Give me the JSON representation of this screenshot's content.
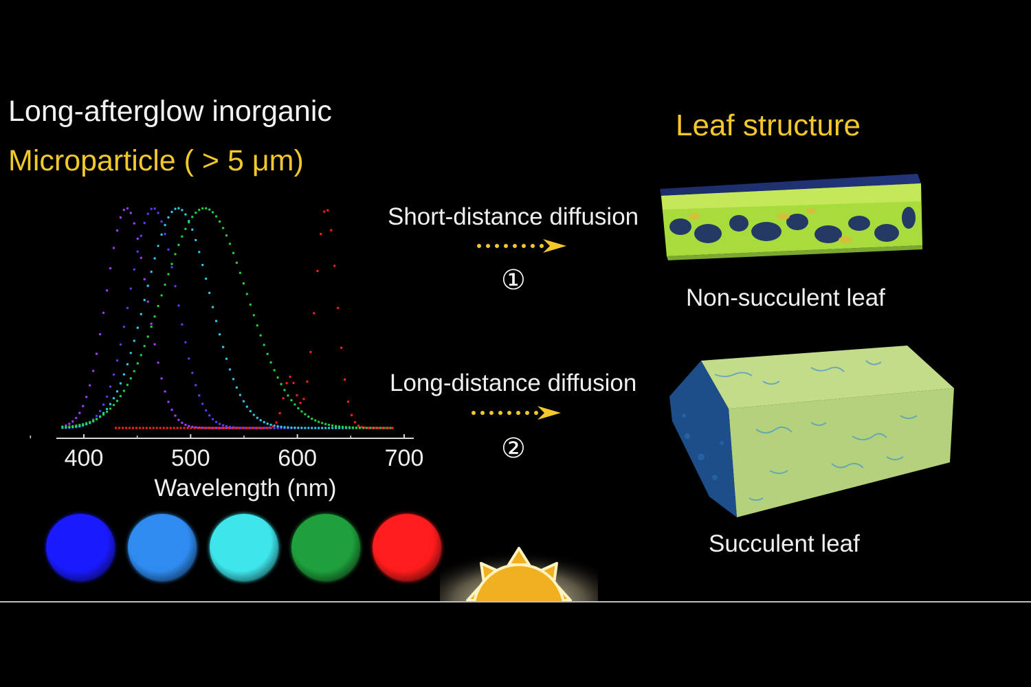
{
  "title": {
    "line1": "Long-afterglow inorganic",
    "line2": "Microparticle ( > 5 μm)"
  },
  "leaf_title": "Leaf structure",
  "pathways": [
    {
      "label": "Short-distance diffusion",
      "step": "①",
      "leaf": "Non-succulent leaf"
    },
    {
      "label": "Long-distance diffusion",
      "step": "②",
      "leaf": "Succulent leaf"
    }
  ],
  "colors": {
    "accent_yellow": "#f2c82b",
    "swatches": [
      "#1a1aff",
      "#2f8bf0",
      "#3ee6ec",
      "#1fa03c",
      "#ff1c1c"
    ]
  },
  "chart_data": {
    "type": "line",
    "xlabel": "Wavelength (nm)",
    "ylabel": "",
    "xlim": [
      350,
      700
    ],
    "ylim": [
      0,
      1
    ],
    "x_ticks": [
      400,
      500,
      600,
      700
    ],
    "series": [
      {
        "color": "#9b40ff",
        "center": 440,
        "width": 19,
        "x_range": [
          380,
          600
        ]
      },
      {
        "color": "#5a3cff",
        "center": 465,
        "width": 22,
        "x_range": [
          380,
          610
        ]
      },
      {
        "color": "#30c8e8",
        "center": 488,
        "width": 30,
        "x_range": [
          380,
          680
        ]
      },
      {
        "color": "#20d040",
        "center": 513,
        "width": 40,
        "x_range": [
          380,
          690
        ]
      },
      {
        "color": "#ff2020",
        "center": 627,
        "width": 10,
        "x_range": [
          430,
          690
        ],
        "secondary_peak": {
          "center": 593,
          "width": 6,
          "height": 0.23
        }
      }
    ]
  },
  "icons": {
    "arrow1": "dotted-right-arrow-icon",
    "arrow2": "dotted-right-arrow-icon",
    "sun": "sun-icon"
  }
}
